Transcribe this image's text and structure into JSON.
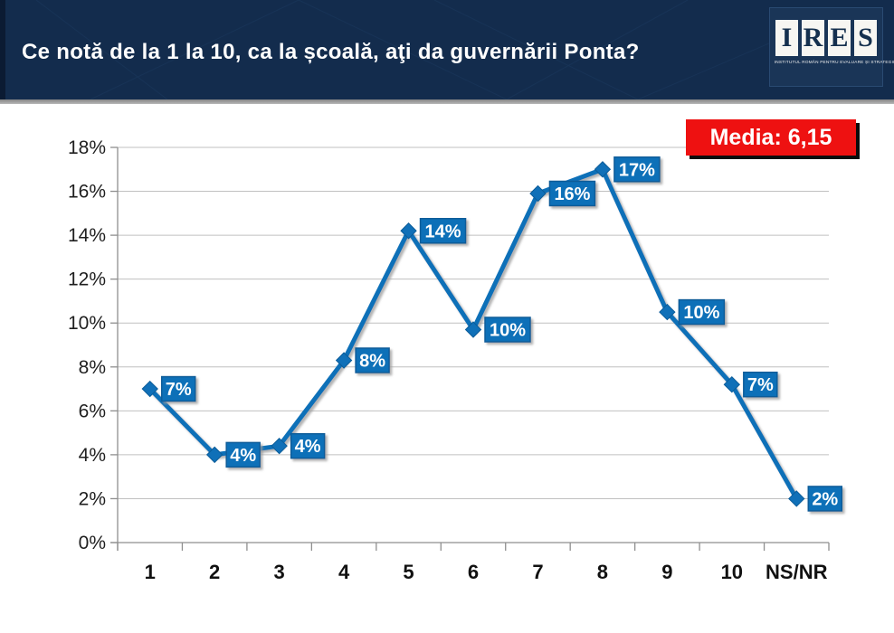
{
  "header": {
    "title": "Ce notă de la 1 la 10, ca la școală, aţi da guvernării Ponta?",
    "logo": {
      "letters": [
        "I",
        "R",
        "E",
        "S"
      ],
      "tagline": "INSTITUTUL ROMÂN PENTRU EVALUARE ȘI STRATEGIE"
    }
  },
  "badge": {
    "label": "Media: 6,15"
  },
  "colors": {
    "header_bg": "#132c4d",
    "accent_blue": "#1070b8",
    "label_border_blue": "#0b5c99",
    "badge_red": "#ee1111",
    "grid_gray": "#c0c0c0",
    "axis_gray": "#8f8f8f",
    "tick_text": "#1f1f1f"
  },
  "chart_data": {
    "type": "line",
    "title": "",
    "xlabel": "",
    "ylabel": "",
    "categories": [
      "1",
      "2",
      "3",
      "4",
      "5",
      "6",
      "7",
      "8",
      "9",
      "10",
      "NS/NR"
    ],
    "values": [
      7,
      4,
      4,
      8,
      14,
      10,
      16,
      17,
      10,
      7,
      2
    ],
    "plotted_values": [
      7.0,
      4.0,
      4.4,
      8.3,
      14.2,
      9.7,
      15.9,
      17.0,
      10.5,
      7.2,
      2.0
    ],
    "point_labels": [
      "7%",
      "4%",
      "4%",
      "8%",
      "14%",
      "10%",
      "16%",
      "17%",
      "10%",
      "7%",
      "2%"
    ],
    "ylim": [
      0,
      18
    ],
    "ytick_step": 2,
    "yticks": [
      "0%",
      "2%",
      "4%",
      "6%",
      "8%",
      "10%",
      "12%",
      "14%",
      "16%",
      "18%"
    ],
    "grid": true,
    "legend": false,
    "marker": "diamond",
    "line_color": "#1070b8",
    "label_bg": "#1070b8",
    "label_text_color": "#ffffff"
  }
}
